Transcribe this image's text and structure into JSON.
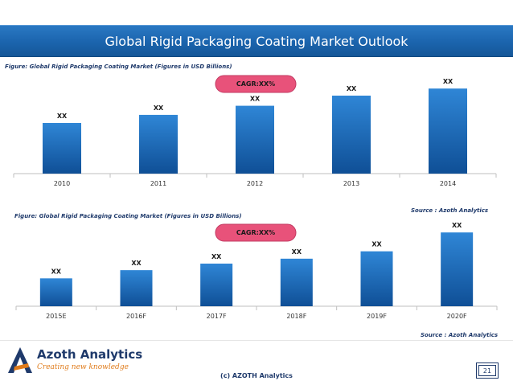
{
  "slide": {
    "title": "Global Rigid Packaging Coating Market Outlook",
    "copyright": "(c) AZOTH Analytics",
    "page_number": "21"
  },
  "logo": {
    "name": "Azoth Analytics",
    "tagline": "Creating new knowledge"
  },
  "colors": {
    "title_bar": "#1b64ad",
    "bar_top": "#2f86d6",
    "bar_bottom": "#0f4f96",
    "cagr_fill": "#e8527a",
    "axis": "#bfbfbf"
  },
  "chart_data": [
    {
      "type": "bar",
      "title": "Figure: Global Rigid Packaging Coating Market (Figures in USD Billions)",
      "source": "Source : Azoth Analytics",
      "categories": [
        "2010",
        "2011",
        "2012",
        "2013",
        "2014"
      ],
      "values": [
        50,
        58,
        67,
        77,
        84
      ],
      "data_labels": [
        "XX",
        "XX",
        "XX",
        "XX",
        "XX"
      ],
      "annotation": "CAGR:XX%",
      "ylim": [
        0,
        100
      ],
      "grid": false
    },
    {
      "type": "bar",
      "title": "Figure: Global Rigid Packaging Coating Market (Figures in USD Billions)",
      "source": "Source : Azoth Analytics",
      "categories": [
        "2015E",
        "2016F",
        "2017F",
        "2018F",
        "2019F",
        "2020F"
      ],
      "values": [
        34,
        44,
        52,
        58,
        67,
        90
      ],
      "data_labels": [
        "XX",
        "XX",
        "XX",
        "XX",
        "XX",
        "XX"
      ],
      "annotation": "CAGR:XX%",
      "ylim": [
        0,
        100
      ],
      "grid": false
    }
  ]
}
